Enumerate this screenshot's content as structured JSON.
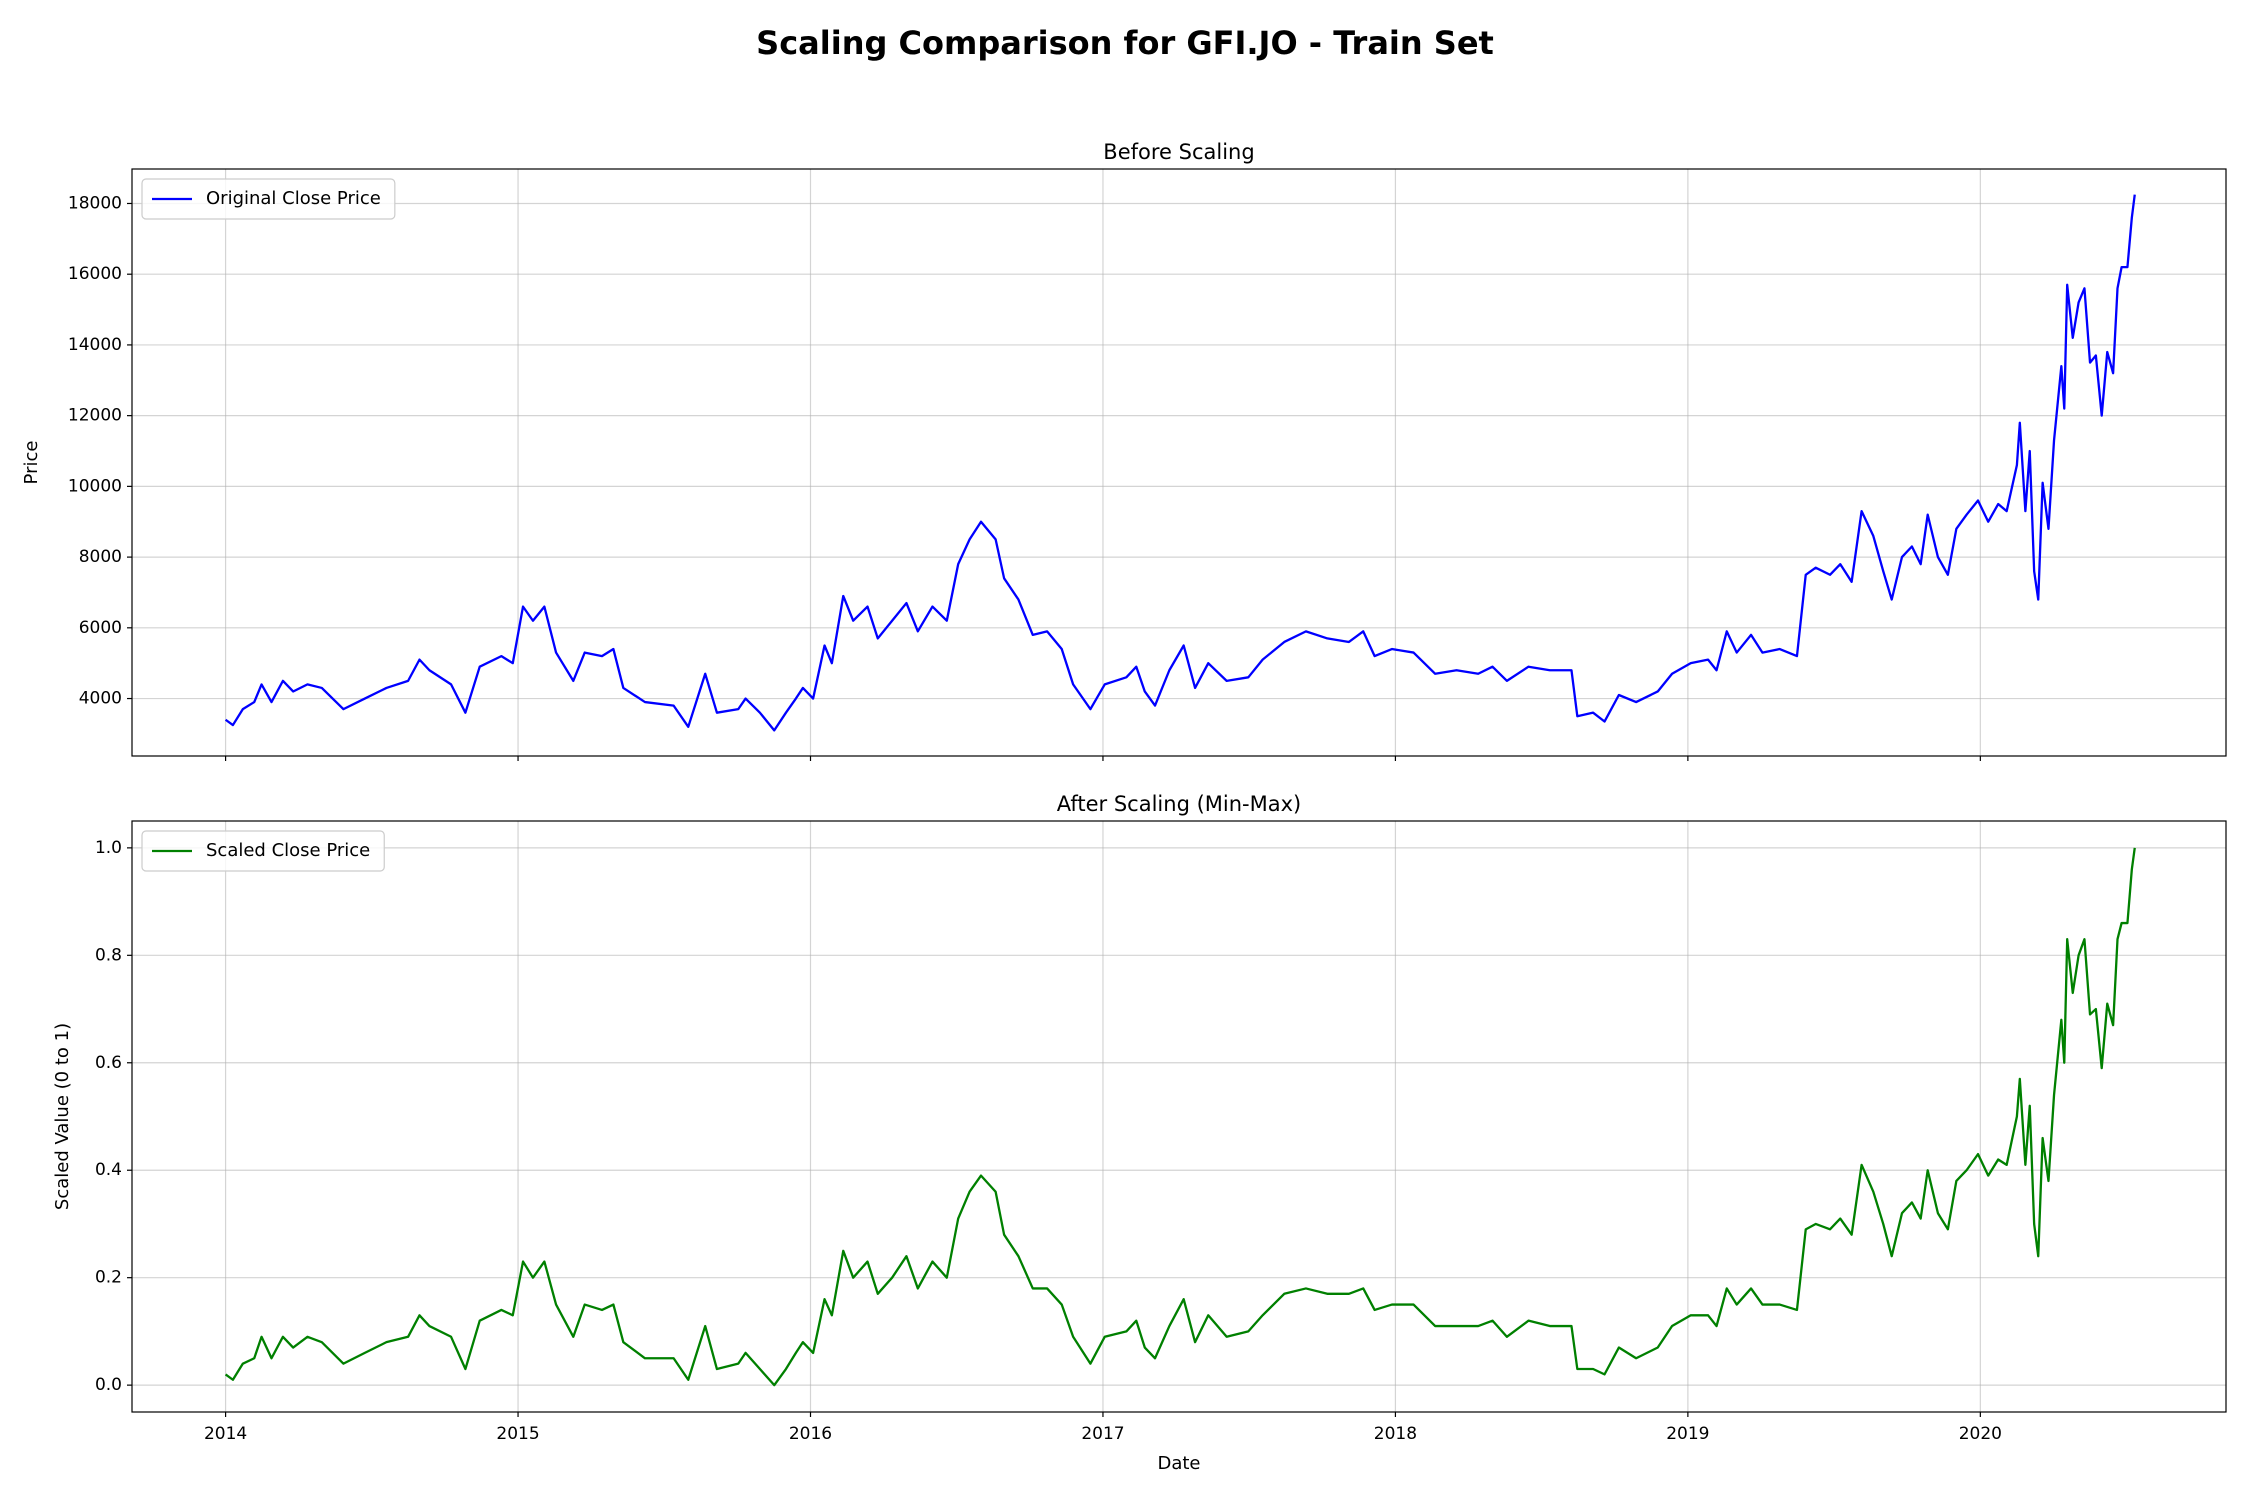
{
  "title": "Scaling Comparison for GFI.JO - Train Set",
  "sharex": true,
  "chart_data": [
    {
      "type": "line",
      "title": "Before Scaling",
      "ylabel": "Price",
      "x": [
        2014.0,
        2014.025,
        2014.059,
        2014.098,
        2014.123,
        2014.157,
        2014.196,
        2014.231,
        2014.28,
        2014.329,
        2014.403,
        2014.476,
        2014.55,
        2014.624,
        2014.663,
        2014.697,
        2014.771,
        2014.82,
        2014.869,
        2014.943,
        2014.982,
        2015.017,
        2015.051,
        2015.09,
        2015.13,
        2015.189,
        2015.228,
        2015.287,
        2015.326,
        2015.36,
        2015.434,
        2015.532,
        2015.582,
        2015.64,
        2015.68,
        2015.753,
        2015.778,
        2015.827,
        2015.876,
        2015.916,
        2015.95,
        2015.974,
        2016.009,
        2016.048,
        2016.073,
        2016.112,
        2016.146,
        2016.195,
        2016.23,
        2016.279,
        2016.328,
        2016.367,
        2016.417,
        2016.466,
        2016.505,
        2016.544,
        2016.583,
        2016.633,
        2016.662,
        2016.711,
        2016.76,
        2016.809,
        2016.859,
        2016.898,
        2016.957,
        2017.006,
        2017.08,
        2017.114,
        2017.143,
        2017.178,
        2017.227,
        2017.276,
        2017.315,
        2017.36,
        2017.423,
        2017.497,
        2017.546,
        2017.62,
        2017.694,
        2017.767,
        2017.841,
        2017.89,
        2017.929,
        2017.988,
        2018.062,
        2018.136,
        2018.209,
        2018.283,
        2018.332,
        2018.381,
        2018.455,
        2018.528,
        2018.602,
        2018.622,
        2018.676,
        2018.715,
        2018.764,
        2018.823,
        2018.897,
        2018.946,
        2019.01,
        2019.069,
        2019.098,
        2019.133,
        2019.167,
        2019.216,
        2019.255,
        2019.314,
        2019.373,
        2019.403,
        2019.437,
        2019.486,
        2019.521,
        2019.56,
        2019.594,
        2019.634,
        2019.668,
        2019.697,
        2019.732,
        2019.766,
        2019.796,
        2019.82,
        2019.855,
        2019.889,
        2019.918,
        2019.953,
        2019.992,
        2020.027,
        2020.061,
        2020.09,
        2020.125,
        2020.135,
        2020.154,
        2020.169,
        2020.184,
        2020.198,
        2020.213,
        2020.233,
        2020.252,
        2020.277,
        2020.287,
        2020.297,
        2020.316,
        2020.336,
        2020.356,
        2020.375,
        2020.395,
        2020.415,
        2020.434,
        2020.454,
        2020.469,
        2020.483,
        2020.503,
        2020.518,
        2020.528
      ],
      "series": [
        {
          "name": "Original Close Price",
          "color": "#0000ff",
          "values": [
            3400,
            3250,
            3700,
            3900,
            4400,
            3900,
            4500,
            4200,
            4400,
            4300,
            3700,
            4000,
            4300,
            4500,
            5100,
            4800,
            4400,
            3600,
            4900,
            5200,
            5000,
            6600,
            6200,
            6600,
            5300,
            4500,
            5300,
            5200,
            5400,
            4300,
            3900,
            3800,
            3200,
            4700,
            3600,
            3700,
            4000,
            3600,
            3100,
            3600,
            4000,
            4300,
            4000,
            5500,
            5000,
            6900,
            6200,
            6600,
            5700,
            6200,
            6700,
            5900,
            6600,
            6200,
            7800,
            8500,
            9000,
            8500,
            7400,
            6800,
            5800,
            5900,
            5400,
            4400,
            3700,
            4400,
            4600,
            4900,
            4200,
            3800,
            4800,
            5500,
            4300,
            5000,
            4500,
            4600,
            5100,
            5600,
            5900,
            5700,
            5600,
            5900,
            5200,
            5400,
            5300,
            4700,
            4800,
            4700,
            4900,
            4500,
            4900,
            4800,
            4800,
            3500,
            3600,
            3350,
            4100,
            3900,
            4200,
            4700,
            5000,
            5100,
            4800,
            5900,
            5300,
            5800,
            5300,
            5400,
            5200,
            7500,
            7700,
            7500,
            7800,
            7300,
            9300,
            8600,
            7600,
            6800,
            8000,
            8300,
            7800,
            9200,
            8000,
            7500,
            8800,
            9200,
            9600,
            9000,
            9500,
            9300,
            10600,
            11800,
            9300,
            11000,
            7600,
            6800,
            10100,
            8800,
            11300,
            13400,
            12200,
            15700,
            14200,
            15200,
            15600,
            13500,
            13700,
            12000,
            13800,
            13200,
            15600,
            16200,
            16200,
            17600,
            18250
          ]
        }
      ],
      "xlim": [
        2013.68,
        2020.84
      ],
      "xticks": [
        2014,
        2015,
        2016,
        2017,
        2018,
        2019,
        2020
      ],
      "ylim": [
        2375,
        18975
      ],
      "yticks": [
        4000,
        6000,
        8000,
        10000,
        12000,
        14000,
        16000,
        18000
      ],
      "grid": true,
      "legend": "upper left"
    },
    {
      "type": "line",
      "title": "After Scaling (Min-Max)",
      "ylabel": "Scaled Value (0 to 1)",
      "xlabel": "Date",
      "x": [
        2014.0,
        2014.025,
        2014.059,
        2014.098,
        2014.123,
        2014.157,
        2014.196,
        2014.231,
        2014.28,
        2014.329,
        2014.403,
        2014.476,
        2014.55,
        2014.624,
        2014.663,
        2014.697,
        2014.771,
        2014.82,
        2014.869,
        2014.943,
        2014.982,
        2015.017,
        2015.051,
        2015.09,
        2015.13,
        2015.189,
        2015.228,
        2015.287,
        2015.326,
        2015.36,
        2015.434,
        2015.532,
        2015.582,
        2015.64,
        2015.68,
        2015.753,
        2015.778,
        2015.827,
        2015.876,
        2015.916,
        2015.95,
        2015.974,
        2016.009,
        2016.048,
        2016.073,
        2016.112,
        2016.146,
        2016.195,
        2016.23,
        2016.279,
        2016.328,
        2016.367,
        2016.417,
        2016.466,
        2016.505,
        2016.544,
        2016.583,
        2016.633,
        2016.662,
        2016.711,
        2016.76,
        2016.809,
        2016.859,
        2016.898,
        2016.957,
        2017.006,
        2017.08,
        2017.114,
        2017.143,
        2017.178,
        2017.227,
        2017.276,
        2017.315,
        2017.36,
        2017.423,
        2017.497,
        2017.546,
        2017.62,
        2017.694,
        2017.767,
        2017.841,
        2017.89,
        2017.929,
        2017.988,
        2018.062,
        2018.136,
        2018.209,
        2018.283,
        2018.332,
        2018.381,
        2018.455,
        2018.528,
        2018.602,
        2018.622,
        2018.676,
        2018.715,
        2018.764,
        2018.823,
        2018.897,
        2018.946,
        2019.01,
        2019.069,
        2019.098,
        2019.133,
        2019.167,
        2019.216,
        2019.255,
        2019.314,
        2019.373,
        2019.403,
        2019.437,
        2019.486,
        2019.521,
        2019.56,
        2019.594,
        2019.634,
        2019.668,
        2019.697,
        2019.732,
        2019.766,
        2019.796,
        2019.82,
        2019.855,
        2019.889,
        2019.918,
        2019.953,
        2019.992,
        2020.027,
        2020.061,
        2020.09,
        2020.125,
        2020.135,
        2020.154,
        2020.169,
        2020.184,
        2020.198,
        2020.213,
        2020.233,
        2020.252,
        2020.277,
        2020.287,
        2020.297,
        2020.316,
        2020.336,
        2020.356,
        2020.375,
        2020.395,
        2020.415,
        2020.434,
        2020.454,
        2020.469,
        2020.483,
        2020.503,
        2020.518,
        2020.528
      ],
      "series": [
        {
          "name": "Scaled Close Price",
          "color": "#008000",
          "values": [
            0.02,
            0.01,
            0.04,
            0.05,
            0.09,
            0.05,
            0.09,
            0.07,
            0.09,
            0.08,
            0.04,
            0.06,
            0.08,
            0.09,
            0.13,
            0.11,
            0.09,
            0.03,
            0.12,
            0.14,
            0.13,
            0.23,
            0.2,
            0.23,
            0.15,
            0.09,
            0.15,
            0.14,
            0.15,
            0.08,
            0.05,
            0.05,
            0.01,
            0.11,
            0.03,
            0.04,
            0.06,
            0.03,
            0.0,
            0.03,
            0.06,
            0.08,
            0.06,
            0.16,
            0.13,
            0.25,
            0.2,
            0.23,
            0.17,
            0.2,
            0.24,
            0.18,
            0.23,
            0.2,
            0.31,
            0.36,
            0.39,
            0.36,
            0.28,
            0.24,
            0.18,
            0.18,
            0.15,
            0.09,
            0.04,
            0.09,
            0.1,
            0.12,
            0.07,
            0.05,
            0.11,
            0.16,
            0.08,
            0.13,
            0.09,
            0.1,
            0.13,
            0.17,
            0.18,
            0.17,
            0.17,
            0.18,
            0.14,
            0.15,
            0.15,
            0.11,
            0.11,
            0.11,
            0.12,
            0.09,
            0.12,
            0.11,
            0.11,
            0.03,
            0.03,
            0.02,
            0.07,
            0.05,
            0.07,
            0.11,
            0.13,
            0.13,
            0.11,
            0.18,
            0.15,
            0.18,
            0.15,
            0.15,
            0.14,
            0.29,
            0.3,
            0.29,
            0.31,
            0.28,
            0.41,
            0.36,
            0.3,
            0.24,
            0.32,
            0.34,
            0.31,
            0.4,
            0.32,
            0.29,
            0.38,
            0.4,
            0.43,
            0.39,
            0.42,
            0.41,
            0.5,
            0.57,
            0.41,
            0.52,
            0.3,
            0.24,
            0.46,
            0.38,
            0.54,
            0.68,
            0.6,
            0.83,
            0.73,
            0.8,
            0.83,
            0.69,
            0.7,
            0.59,
            0.71,
            0.67,
            0.83,
            0.86,
            0.86,
            0.96,
            1.0
          ]
        }
      ],
      "xlim": [
        2013.68,
        2020.84
      ],
      "xticks": [
        2014,
        2015,
        2016,
        2017,
        2018,
        2019,
        2020
      ],
      "ylim": [
        -0.05,
        1.05
      ],
      "yticks": [
        {
          "value": 0,
          "label": "0.0"
        },
        0.2,
        0.4,
        0.6,
        0.8,
        {
          "value": 1,
          "label": "1.0"
        }
      ],
      "grid": true,
      "legend": "upper left"
    }
  ]
}
